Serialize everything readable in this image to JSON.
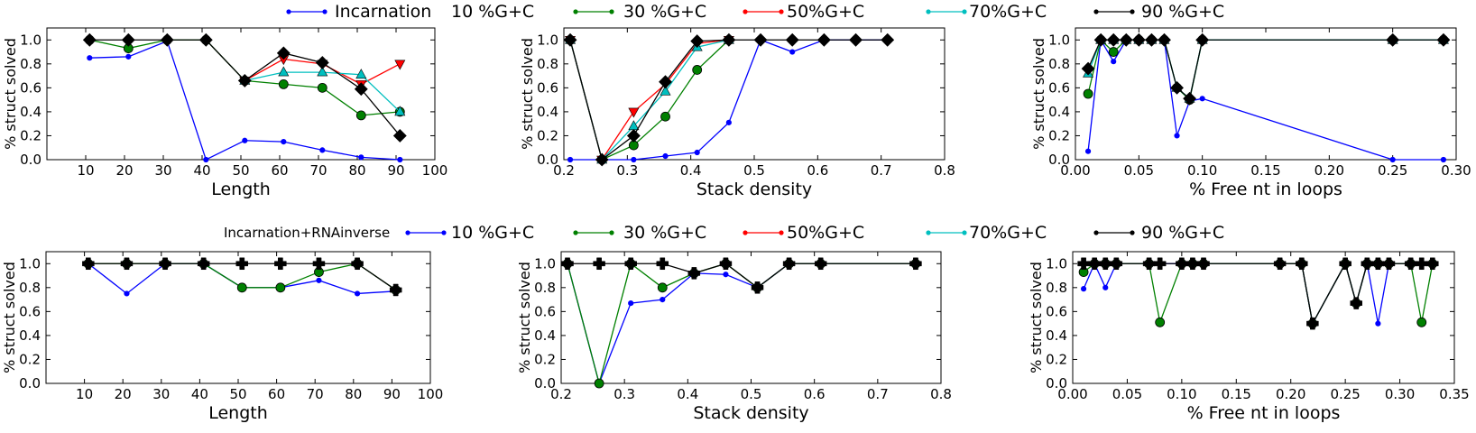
{
  "figure": {
    "rows": [
      {
        "legend_label": "Incarnation",
        "series_labels": [
          "10 %G+C",
          "30 %G+C",
          "50%G+C",
          "70%G+C",
          "90 %G+C"
        ]
      },
      {
        "legend_label": "Incarnation+RNAinverse",
        "series_labels": [
          "10 %G+C",
          "30 %G+C",
          "50%G+C",
          "70%G+C",
          "90 %G+C"
        ]
      }
    ],
    "colors": {
      "base": "#0000ff",
      "gc30": "#008000",
      "gc50": "#ff0000",
      "gc70": "#00bfbf",
      "gc90": "#000000"
    }
  },
  "chart_data": [
    {
      "type": "line",
      "row": 0,
      "xlabel": "Length",
      "ylabel": "% struct solved",
      "xlim": [
        0,
        100
      ],
      "ylim": [
        0,
        1.1
      ],
      "xticks": [
        "10",
        "20",
        "30",
        "40",
        "50",
        "60",
        "70",
        "80",
        "90",
        "100"
      ],
      "yticks": [
        "0.0",
        "0.2",
        "0.4",
        "0.6",
        "0.8",
        "1.0"
      ],
      "series": [
        {
          "name": "Incarnation",
          "color": "#0000ff",
          "marker": "dot",
          "x": [
            11,
            21,
            31,
            41,
            51,
            61,
            71,
            81,
            91
          ],
          "y": [
            0.85,
            0.86,
            0.99,
            0.0,
            0.16,
            0.15,
            0.08,
            0.02,
            0.0
          ]
        },
        {
          "name": "30 %G+C",
          "color": "#008000",
          "marker": "circle",
          "x": [
            11,
            21,
            31,
            41,
            51,
            61,
            71,
            81,
            91
          ],
          "y": [
            1.0,
            0.93,
            1.0,
            1.0,
            0.66,
            0.63,
            0.6,
            0.37,
            0.4
          ]
        },
        {
          "name": "50%G+C",
          "color": "#ff0000",
          "marker": "triangle-down",
          "x": [
            51,
            61,
            71,
            81,
            91
          ],
          "y": [
            0.66,
            0.84,
            0.8,
            0.63,
            0.8
          ]
        },
        {
          "name": "70%G+C",
          "color": "#00bfbf",
          "marker": "triangle-up",
          "x": [
            51,
            61,
            71,
            81,
            91
          ],
          "y": [
            0.66,
            0.73,
            0.73,
            0.71,
            0.4
          ]
        },
        {
          "name": "90 %G+C",
          "color": "#000000",
          "marker": "diamond",
          "x": [
            11,
            21,
            31,
            41,
            51,
            61,
            71,
            81,
            91
          ],
          "y": [
            1.0,
            1.0,
            1.0,
            1.0,
            0.66,
            0.89,
            0.81,
            0.59,
            0.2
          ]
        }
      ]
    },
    {
      "type": "line",
      "row": 0,
      "xlabel": "Stack density",
      "ylabel": "% struct solved",
      "xlim": [
        0.2,
        0.8
      ],
      "ylim": [
        0,
        1.1
      ],
      "xticks": [
        "0.2",
        "0.3",
        "0.4",
        "0.5",
        "0.6",
        "0.7",
        "0.8"
      ],
      "yticks": [
        "0.0",
        "0.2",
        "0.4",
        "0.6",
        "0.8",
        "1.0"
      ],
      "series": [
        {
          "name": "Incarnation",
          "color": "#0000ff",
          "marker": "dot",
          "x": [
            0.21,
            0.26,
            0.31,
            0.36,
            0.41,
            0.46,
            0.51,
            0.56,
            0.61,
            0.66,
            0.71
          ],
          "y": [
            0.0,
            0.0,
            0.0,
            0.03,
            0.06,
            0.31,
            1.0,
            0.9,
            1.0,
            1.0,
            1.0
          ]
        },
        {
          "name": "30 %G+C",
          "color": "#008000",
          "marker": "circle",
          "x": [
            0.21,
            0.26,
            0.31,
            0.36,
            0.41,
            0.46
          ],
          "y": [
            1.0,
            0.0,
            0.12,
            0.36,
            0.75,
            1.0
          ]
        },
        {
          "name": "50%G+C",
          "color": "#ff0000",
          "marker": "triangle-down",
          "x": [
            0.21,
            0.26,
            0.31,
            0.36,
            0.41,
            0.46
          ],
          "y": [
            1.0,
            0.0,
            0.4,
            0.63,
            0.97,
            1.0
          ]
        },
        {
          "name": "70%G+C",
          "color": "#00bfbf",
          "marker": "triangle-up",
          "x": [
            0.21,
            0.26,
            0.31,
            0.36,
            0.41,
            0.46
          ],
          "y": [
            1.0,
            0.0,
            0.28,
            0.57,
            0.94,
            1.0
          ]
        },
        {
          "name": "90 %G+C",
          "color": "#000000",
          "marker": "diamond",
          "x": [
            0.21,
            0.26,
            0.31,
            0.36,
            0.41,
            0.46,
            0.51,
            0.56,
            0.61,
            0.66,
            0.71
          ],
          "y": [
            1.0,
            0.0,
            0.2,
            0.65,
            0.99,
            1.0,
            1.0,
            1.0,
            1.0,
            1.0,
            1.0
          ]
        }
      ]
    },
    {
      "type": "line",
      "row": 0,
      "xlabel": "% Free nt in loops",
      "ylabel": "% struct solved",
      "xlim": [
        0,
        0.3
      ],
      "ylim": [
        0,
        1.1
      ],
      "xticks": [
        "0.00",
        "0.05",
        "0.10",
        "0.15",
        "0.20",
        "0.25",
        "0.30"
      ],
      "yticks": [
        "0.0",
        "0.2",
        "0.4",
        "0.6",
        "0.8",
        "1.0"
      ],
      "series": [
        {
          "name": "Incarnation",
          "color": "#0000ff",
          "marker": "dot",
          "x": [
            0.01,
            0.02,
            0.03,
            0.04,
            0.05,
            0.06,
            0.07,
            0.08,
            0.09,
            0.1,
            0.25,
            0.29
          ],
          "y": [
            0.07,
            1.0,
            0.82,
            1.0,
            1.0,
            1.0,
            1.0,
            0.2,
            0.49,
            0.51,
            0.0,
            0.0
          ]
        },
        {
          "name": "30 %G+C",
          "color": "#008000",
          "marker": "circle",
          "x": [
            0.01,
            0.02,
            0.03,
            0.04,
            0.05,
            0.06,
            0.07,
            0.08,
            0.09,
            0.1,
            0.25,
            0.29
          ],
          "y": [
            0.55,
            1.0,
            0.9,
            1.0,
            1.0,
            1.0,
            1.0,
            0.6,
            0.5,
            1.0,
            1.0,
            1.0
          ]
        },
        {
          "name": "70%G+C",
          "color": "#00bfbf",
          "marker": "triangle-up",
          "x": [
            0.01,
            0.02,
            0.03,
            0.04,
            0.05,
            0.06,
            0.07,
            0.08,
            0.09,
            0.1,
            0.25,
            0.29
          ],
          "y": [
            0.72,
            1.0,
            1.0,
            1.0,
            1.0,
            1.0,
            1.0,
            0.6,
            0.51,
            1.0,
            1.0,
            1.0
          ]
        },
        {
          "name": "90 %G+C",
          "color": "#000000",
          "marker": "diamond",
          "x": [
            0.01,
            0.02,
            0.03,
            0.04,
            0.05,
            0.06,
            0.07,
            0.08,
            0.09,
            0.1,
            0.25,
            0.29
          ],
          "y": [
            0.76,
            1.0,
            1.0,
            1.0,
            1.0,
            1.0,
            1.0,
            0.6,
            0.51,
            1.0,
            1.0,
            1.0
          ]
        }
      ]
    },
    {
      "type": "line",
      "row": 1,
      "xlabel": "Length",
      "ylabel": "% struct solved",
      "xlim": [
        0,
        100
      ],
      "ylim": [
        0,
        1.1
      ],
      "xticks": [
        "10",
        "20",
        "30",
        "40",
        "50",
        "60",
        "70",
        "80",
        "90",
        "100"
      ],
      "yticks": [
        "0.0",
        "0.2",
        "0.4",
        "0.6",
        "0.8",
        "1.0"
      ],
      "series": [
        {
          "name": "Incarnation+RNAinverse",
          "color": "#0000ff",
          "marker": "dot",
          "x": [
            11,
            21,
            31,
            41,
            51,
            61,
            71,
            81,
            91
          ],
          "y": [
            1.0,
            0.75,
            1.0,
            1.0,
            0.8,
            0.8,
            0.86,
            0.75,
            0.77
          ]
        },
        {
          "name": "30 %G+C",
          "color": "#008000",
          "marker": "circle",
          "x": [
            11,
            21,
            31,
            41,
            51,
            61,
            71,
            81,
            91
          ],
          "y": [
            1.0,
            1.0,
            1.0,
            1.0,
            0.8,
            0.8,
            0.93,
            1.0,
            0.78
          ]
        },
        {
          "name": "90 %G+C",
          "color": "#000000",
          "marker": "cross",
          "x": [
            11,
            21,
            31,
            41,
            51,
            61,
            71,
            81,
            91
          ],
          "y": [
            1.0,
            1.0,
            1.0,
            1.0,
            1.0,
            1.0,
            1.0,
            1.0,
            0.78
          ]
        }
      ]
    },
    {
      "type": "line",
      "row": 1,
      "xlabel": "Stack density",
      "ylabel": "% struct solved",
      "xlim": [
        0.2,
        0.8
      ],
      "ylim": [
        0,
        1.1
      ],
      "xticks": [
        "0.2",
        "0.3",
        "0.4",
        "0.5",
        "0.6",
        "0.7",
        "0.8"
      ],
      "yticks": [
        "0.0",
        "0.2",
        "0.4",
        "0.6",
        "0.8",
        "1.0"
      ],
      "series": [
        {
          "name": "Incarnation+RNAinverse",
          "color": "#0000ff",
          "marker": "dot",
          "x": [
            0.21,
            0.26,
            0.31,
            0.36,
            0.41,
            0.46,
            0.51,
            0.56,
            0.61,
            0.76
          ],
          "y": [
            1.0,
            0.0,
            0.67,
            0.7,
            0.92,
            0.91,
            0.8,
            1.0,
            1.0,
            1.0
          ]
        },
        {
          "name": "30 %G+C",
          "color": "#008000",
          "marker": "circle",
          "x": [
            0.21,
            0.26,
            0.31,
            0.36,
            0.41,
            0.46,
            0.51,
            0.56,
            0.61,
            0.76
          ],
          "y": [
            1.0,
            0.0,
            1.0,
            0.8,
            0.92,
            1.0,
            0.8,
            1.0,
            1.0,
            1.0
          ]
        },
        {
          "name": "90 %G+C",
          "color": "#000000",
          "marker": "cross",
          "x": [
            0.21,
            0.26,
            0.31,
            0.36,
            0.41,
            0.46,
            0.51,
            0.56,
            0.61,
            0.76
          ],
          "y": [
            1.0,
            1.0,
            1.0,
            1.0,
            0.92,
            1.0,
            0.8,
            1.0,
            1.0,
            1.0
          ]
        }
      ]
    },
    {
      "type": "line",
      "row": 1,
      "xlabel": "% Free nt in loops",
      "ylabel": "% struct solved",
      "xlim": [
        0,
        0.35
      ],
      "ylim": [
        0,
        1.1
      ],
      "xticks": [
        "0.00",
        "0.05",
        "0.10",
        "0.15",
        "0.20",
        "0.25",
        "0.30",
        "0.35"
      ],
      "yticks": [
        "0.0",
        "0.2",
        "0.4",
        "0.6",
        "0.8",
        "1.0"
      ],
      "series": [
        {
          "name": "Incarnation+RNAinverse",
          "color": "#0000ff",
          "marker": "dot",
          "x": [
            0.01,
            0.02,
            0.03,
            0.04,
            0.07,
            0.08,
            0.1,
            0.11,
            0.12,
            0.19,
            0.21,
            0.22,
            0.25,
            0.26,
            0.27,
            0.28,
            0.29,
            0.31,
            0.32,
            0.33
          ],
          "y": [
            0.79,
            1.0,
            0.8,
            1.0,
            1.0,
            1.0,
            1.0,
            1.0,
            1.0,
            1.0,
            1.0,
            0.5,
            1.0,
            0.67,
            1.0,
            0.5,
            1.0,
            1.0,
            1.0,
            1.0
          ]
        },
        {
          "name": "30 %G+C",
          "color": "#008000",
          "marker": "circle",
          "x": [
            0.01,
            0.02,
            0.03,
            0.04,
            0.07,
            0.08,
            0.1,
            0.11,
            0.12,
            0.19,
            0.21,
            0.22,
            0.25,
            0.26,
            0.27,
            0.28,
            0.29,
            0.31,
            0.32,
            0.33
          ],
          "y": [
            0.93,
            1.0,
            1.0,
            1.0,
            1.0,
            0.51,
            1.0,
            1.0,
            1.0,
            1.0,
            1.0,
            0.5,
            1.0,
            0.67,
            1.0,
            1.0,
            1.0,
            1.0,
            0.51,
            1.0
          ]
        },
        {
          "name": "90 %G+C",
          "color": "#000000",
          "marker": "cross",
          "x": [
            0.01,
            0.02,
            0.03,
            0.04,
            0.07,
            0.08,
            0.1,
            0.11,
            0.12,
            0.19,
            0.21,
            0.22,
            0.25,
            0.26,
            0.27,
            0.28,
            0.29,
            0.31,
            0.32,
            0.33
          ],
          "y": [
            1.0,
            1.0,
            1.0,
            1.0,
            1.0,
            1.0,
            1.0,
            1.0,
            1.0,
            1.0,
            1.0,
            0.5,
            1.0,
            0.67,
            1.0,
            1.0,
            1.0,
            1.0,
            1.0,
            1.0
          ]
        }
      ]
    }
  ]
}
